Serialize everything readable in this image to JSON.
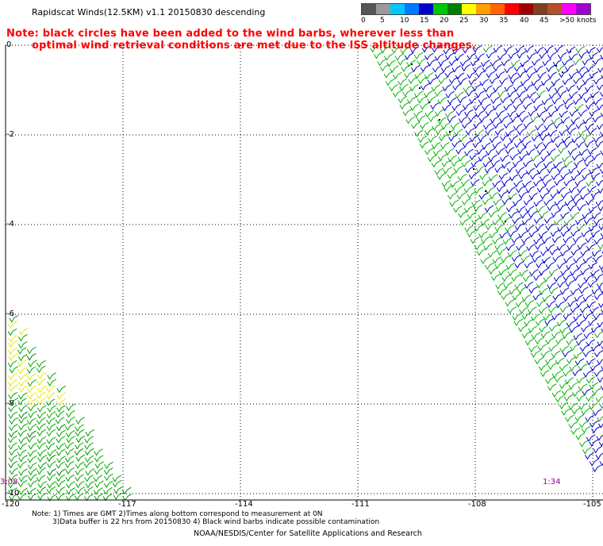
{
  "header": {
    "title": "Rapidscat Winds(12.5KM) v1.1 20150830 descending",
    "note_line1": "Note: black circles have been added to the wind barbs, wherever less than",
    "note_line2": "optimal wind retrieval conditions are met due to the ISS altitude changes."
  },
  "legend": {
    "colors": [
      "#555555",
      "#9a9a9a",
      "#00c8ff",
      "#0078ff",
      "#0000c8",
      "#00c800",
      "#008000",
      "#ffff00",
      "#ffa000",
      "#ff6400",
      "#ff0000",
      "#a00000",
      "#804020",
      "#b45028",
      "#ff00ff",
      "#a000d0",
      "#400080"
    ],
    "labels": [
      "0",
      "5",
      "10",
      "15",
      "20",
      "25",
      "30",
      "35",
      "40",
      "45",
      ">50 knots"
    ]
  },
  "map": {
    "lat_labels": [
      "0",
      "-2",
      "-4",
      "-6",
      "-8",
      "-10"
    ],
    "lon_labels": [
      "-120",
      "-117",
      "-114",
      "-111",
      "-108",
      "-105"
    ],
    "swath_times": [
      "3:08",
      "1:34"
    ]
  },
  "footer": {
    "note_line1": "Note: 1) Times are GMT 2)Times along bottom correspond to measurement at 0N",
    "note_line2": "3)Data buffer is 22 hrs from 20150830 4) Black wind barbs indicate possible contamination",
    "credit": "NOAA/NESDIS/Center for Satellite Applications and Research"
  }
}
